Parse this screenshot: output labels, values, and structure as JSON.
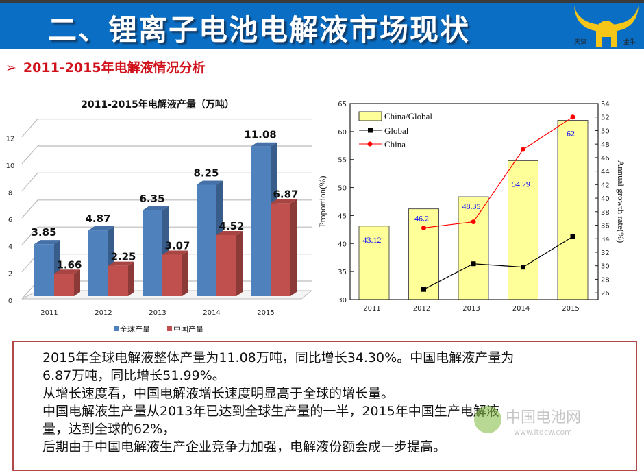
{
  "header": {
    "title": "二、锂离子电池电解液市场现状",
    "logo_text": "天津 金牛"
  },
  "subtitle": {
    "bullet": "➢",
    "text": "2011-2015年电解液情况分析"
  },
  "colors": {
    "header_bg": "#0a6fc4",
    "blue_bar": "#4f81bd",
    "red_bar": "#c0504d",
    "yellow_bar": "#ffff99",
    "global_line": "#000000",
    "china_line": "#ff0000",
    "label_blue": "#0000ff"
  },
  "chart_data": [
    {
      "type": "bar",
      "title": "2011-2015年电解液产量（万吨）",
      "categories": [
        "2011",
        "2012",
        "2013",
        "2014",
        "2015"
      ],
      "series": [
        {
          "name": "全球产量",
          "values": [
            3.85,
            4.87,
            6.35,
            8.25,
            11.08
          ]
        },
        {
          "name": "中国产量",
          "values": [
            1.66,
            2.25,
            3.07,
            4.52,
            6.87
          ]
        }
      ],
      "ylim": [
        0,
        12
      ],
      "yticks": [
        "0",
        "2",
        "4",
        "6",
        "8",
        "10",
        "12"
      ],
      "grid": true,
      "legend": "bottom",
      "style": "3d"
    },
    {
      "type": "bar+line",
      "categories": [
        "2011",
        "2012",
        "2013",
        "2014",
        "2015"
      ],
      "ylabel": "Proportion(%)",
      "y2label": "Annual growth rate(%)",
      "ylim": [
        30,
        65
      ],
      "yticks": [
        "30",
        "35",
        "40",
        "45",
        "50",
        "55",
        "60",
        "65"
      ],
      "y2lim": [
        25,
        54
      ],
      "y2ticks": [
        "26",
        "28",
        "30",
        "32",
        "34",
        "36",
        "38",
        "40",
        "42",
        "44",
        "46",
        "48",
        "50",
        "52",
        "54"
      ],
      "bars": {
        "name": "China/Global",
        "values": [
          43.12,
          46.2,
          48.35,
          54.79,
          62
        ],
        "labels": [
          "43.12",
          "46.2",
          "48.35",
          "54.79",
          "62"
        ]
      },
      "series": [
        {
          "name": "Global",
          "axis": "right",
          "values": [
            null,
            26.5,
            30.3,
            29.8,
            34.3
          ]
        },
        {
          "name": "China",
          "axis": "right",
          "values": [
            null,
            35.6,
            36.5,
            47.2,
            52.0
          ]
        }
      ],
      "legend": "top-left"
    }
  ],
  "textbox": {
    "lines": [
      "2015年全球电解液整体产量为11.08万吨，同比增长34.30%。中国电解液产量为",
      "6.87万吨，同比增长51.99%。",
      "从增长速度看，中国电解液增长速度明显高于全球的增长量。",
      "中国电解液生产量从2013年已达到全球生产量的一半，2015年中国生产电解液",
      "量，达到全球的62%，",
      "后期由于中国电解液生产企业竞争力加强，电解液份额会成一步提高。"
    ]
  },
  "watermark": {
    "text": "中国电池网",
    "url_text": "www.itdcw.com"
  }
}
